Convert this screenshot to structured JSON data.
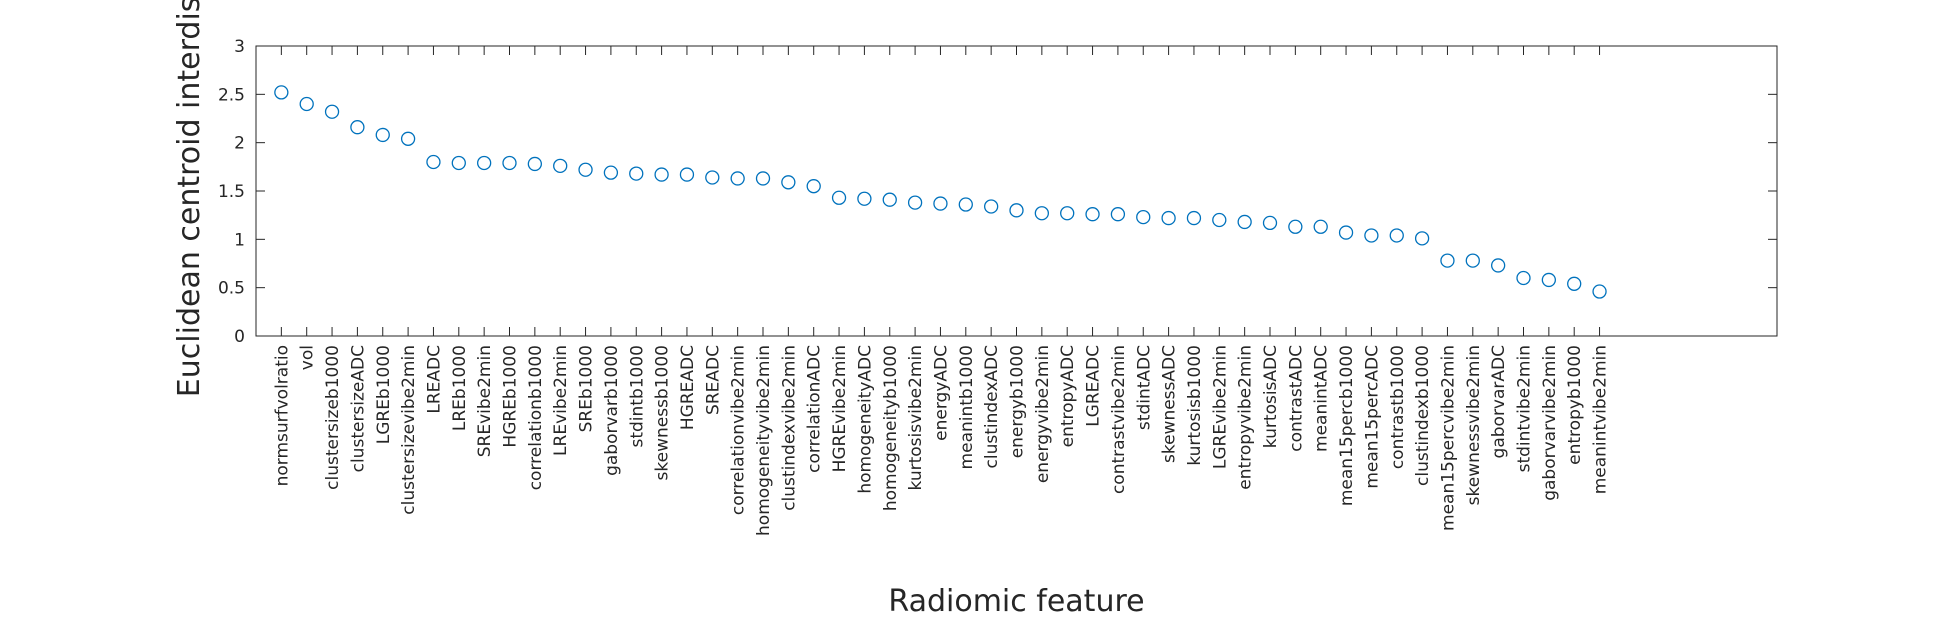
{
  "chart_data": {
    "type": "scatter",
    "title": "",
    "xlabel": "Radiomic feature",
    "ylabel": "Euclidean centroid interdist",
    "ylim": [
      0,
      3
    ],
    "yticks": [
      "0",
      "0.5",
      "1",
      "1.5",
      "2",
      "2.5",
      "3"
    ],
    "grid": false,
    "legend": "none",
    "marker": "open-circle",
    "marker_color": "#0072BD",
    "axis_color": "#262626",
    "categories": [
      "normsurfvolratio",
      "vol",
      "clustersizeb1000",
      "clustersizeADC",
      "LGREb1000",
      "clustersizevibe2min",
      "LREADC",
      "LREb1000",
      "SREvibe2min",
      "HGREb1000",
      "correlationb1000",
      "LREvibe2min",
      "SREb1000",
      "gaborvarb1000",
      "stdintb1000",
      "skewnessb1000",
      "HGREADC",
      "SREADC",
      "correlationvibe2min",
      "homogeneityvibe2min",
      "clustindexvibe2min",
      "correlationADC",
      "HGREvibe2min",
      "homogeneityADC",
      "homogeneityb1000",
      "kurtosisvibe2min",
      "energyADC",
      "meanintb1000",
      "clustindexADC",
      "energyb1000",
      "energyvibe2min",
      "entropyADC",
      "LGREADC",
      "contrastvibe2min",
      "stdintADC",
      "skewnessADC",
      "kurtosisb1000",
      "LGREvibe2min",
      "entropyvibe2min",
      "kurtosisADC",
      "contrastADC",
      "meanintADC",
      "mean15percb1000",
      "mean15percADC",
      "contrastb1000",
      "clustindexb1000",
      "mean15percvibe2min",
      "skewnessvibe2min",
      "gaborvarADC",
      "stdintvibe2min",
      "gaborvarvibe2min",
      "entropyb1000",
      "meanintvibe2min"
    ],
    "values": [
      2.52,
      2.4,
      2.32,
      2.16,
      2.08,
      2.04,
      1.8,
      1.79,
      1.79,
      1.79,
      1.78,
      1.76,
      1.72,
      1.69,
      1.68,
      1.67,
      1.67,
      1.64,
      1.63,
      1.63,
      1.59,
      1.55,
      1.43,
      1.42,
      1.41,
      1.38,
      1.37,
      1.36,
      1.34,
      1.3,
      1.27,
      1.27,
      1.26,
      1.26,
      1.23,
      1.22,
      1.22,
      1.2,
      1.18,
      1.17,
      1.13,
      1.13,
      1.07,
      1.04,
      1.04,
      1.01,
      0.78,
      0.78,
      0.73,
      0.6,
      0.58,
      0.54,
      0.46
    ],
    "xlim_slots": 60
  }
}
